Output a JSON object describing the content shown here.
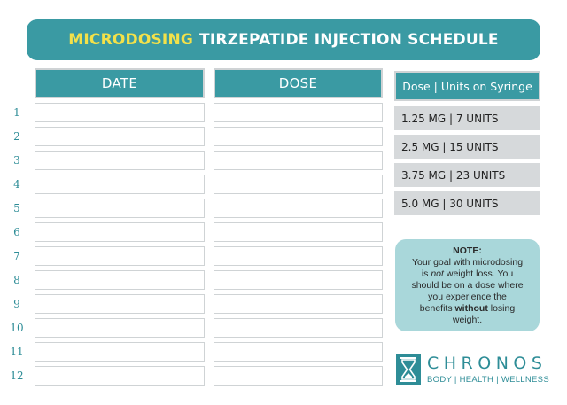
{
  "header": {
    "highlight": "MICRODOSING",
    "title": "TIRZEPATIDE INJECTION SCHEDULE"
  },
  "table": {
    "columns": [
      "DATE",
      "DOSE"
    ],
    "row_numbers": [
      "1",
      "2",
      "3",
      "4",
      "5",
      "6",
      "7",
      "8",
      "9",
      "10",
      "11",
      "12"
    ]
  },
  "dose_units": {
    "header": "Dose | Units on Syringe",
    "rows": [
      "1.25 MG | 7 UNITS",
      "2.5 MG | 15 UNITS",
      "3.75 MG | 23 UNITS",
      "5.0 MG | 30 UNITS"
    ]
  },
  "note": {
    "title": "NOTE:",
    "line1": "Your goal with microdosing",
    "line2_a": "is ",
    "line2_em": "not",
    "line2_b": " weight loss. You",
    "line3": "should be on a dose where",
    "line4": "you experience the",
    "line5_a": "benefits ",
    "line5_strong": "without",
    "line5_b": " losing",
    "line6": "weight."
  },
  "brand": {
    "name": "CHRONOS",
    "tagline": "BODY | HEALTH | WELLNESS",
    "icon": "hourglass-icon"
  },
  "colors": {
    "teal": "#3a9aa3",
    "highlight_yellow": "#f3e14a",
    "note_bg": "#a9d7da",
    "unit_row_bg": "#d6d9db"
  }
}
